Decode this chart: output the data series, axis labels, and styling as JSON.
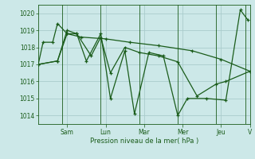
{
  "background_color": "#cce8e8",
  "grid_color": "#aacccc",
  "line_color": "#1a5c1a",
  "marker_color": "#1a5c1a",
  "xlabel": "Pression niveau de la mer( hPa )",
  "ylim": [
    1013.5,
    1020.5
  ],
  "yticks": [
    1014,
    1015,
    1016,
    1017,
    1018,
    1019,
    1020
  ],
  "xlim": [
    0,
    22
  ],
  "xtick_labels": [
    "Sam",
    "Lun",
    "Mar",
    "Mer",
    "Jeu",
    "V"
  ],
  "xtick_positions": [
    3,
    7,
    11,
    15,
    19,
    22
  ],
  "vline_positions": [
    2.5,
    6.5,
    10.5,
    14.5,
    18.5,
    21.5
  ],
  "series": [
    [
      [
        0,
        0.5,
        1.5,
        2.0,
        3.0,
        4.5,
        7.0,
        9.5,
        12.5,
        16.0,
        19.0,
        22.0
      ],
      [
        1017.0,
        1018.3,
        1018.3,
        1019.4,
        1018.8,
        1018.6,
        1018.5,
        1018.3,
        1018.1,
        1017.8,
        1017.3,
        1016.6
      ]
    ],
    [
      [
        0,
        2.0,
        3.0,
        4.0,
        5.0,
        6.5,
        7.5,
        9.0,
        10.0,
        11.5,
        13.0,
        14.5,
        15.5,
        17.5,
        19.5,
        21.0,
        21.8
      ],
      [
        1017.0,
        1017.2,
        1019.0,
        1018.8,
        1017.2,
        1018.8,
        1015.0,
        1017.8,
        1014.1,
        1017.7,
        1017.5,
        1014.0,
        1015.0,
        1015.0,
        1014.9,
        1020.2,
        1019.6
      ]
    ],
    [
      [
        0,
        2.0,
        3.0,
        4.0,
        5.5,
        6.5,
        7.5,
        9.0,
        10.5,
        12.5,
        14.5,
        16.5,
        18.5,
        19.5,
        22.0
      ],
      [
        1017.0,
        1017.2,
        1018.8,
        1018.8,
        1017.5,
        1018.6,
        1016.5,
        1018.0,
        1017.7,
        1017.5,
        1017.15,
        1015.15,
        1015.85,
        1016.0,
        1016.6
      ]
    ]
  ]
}
